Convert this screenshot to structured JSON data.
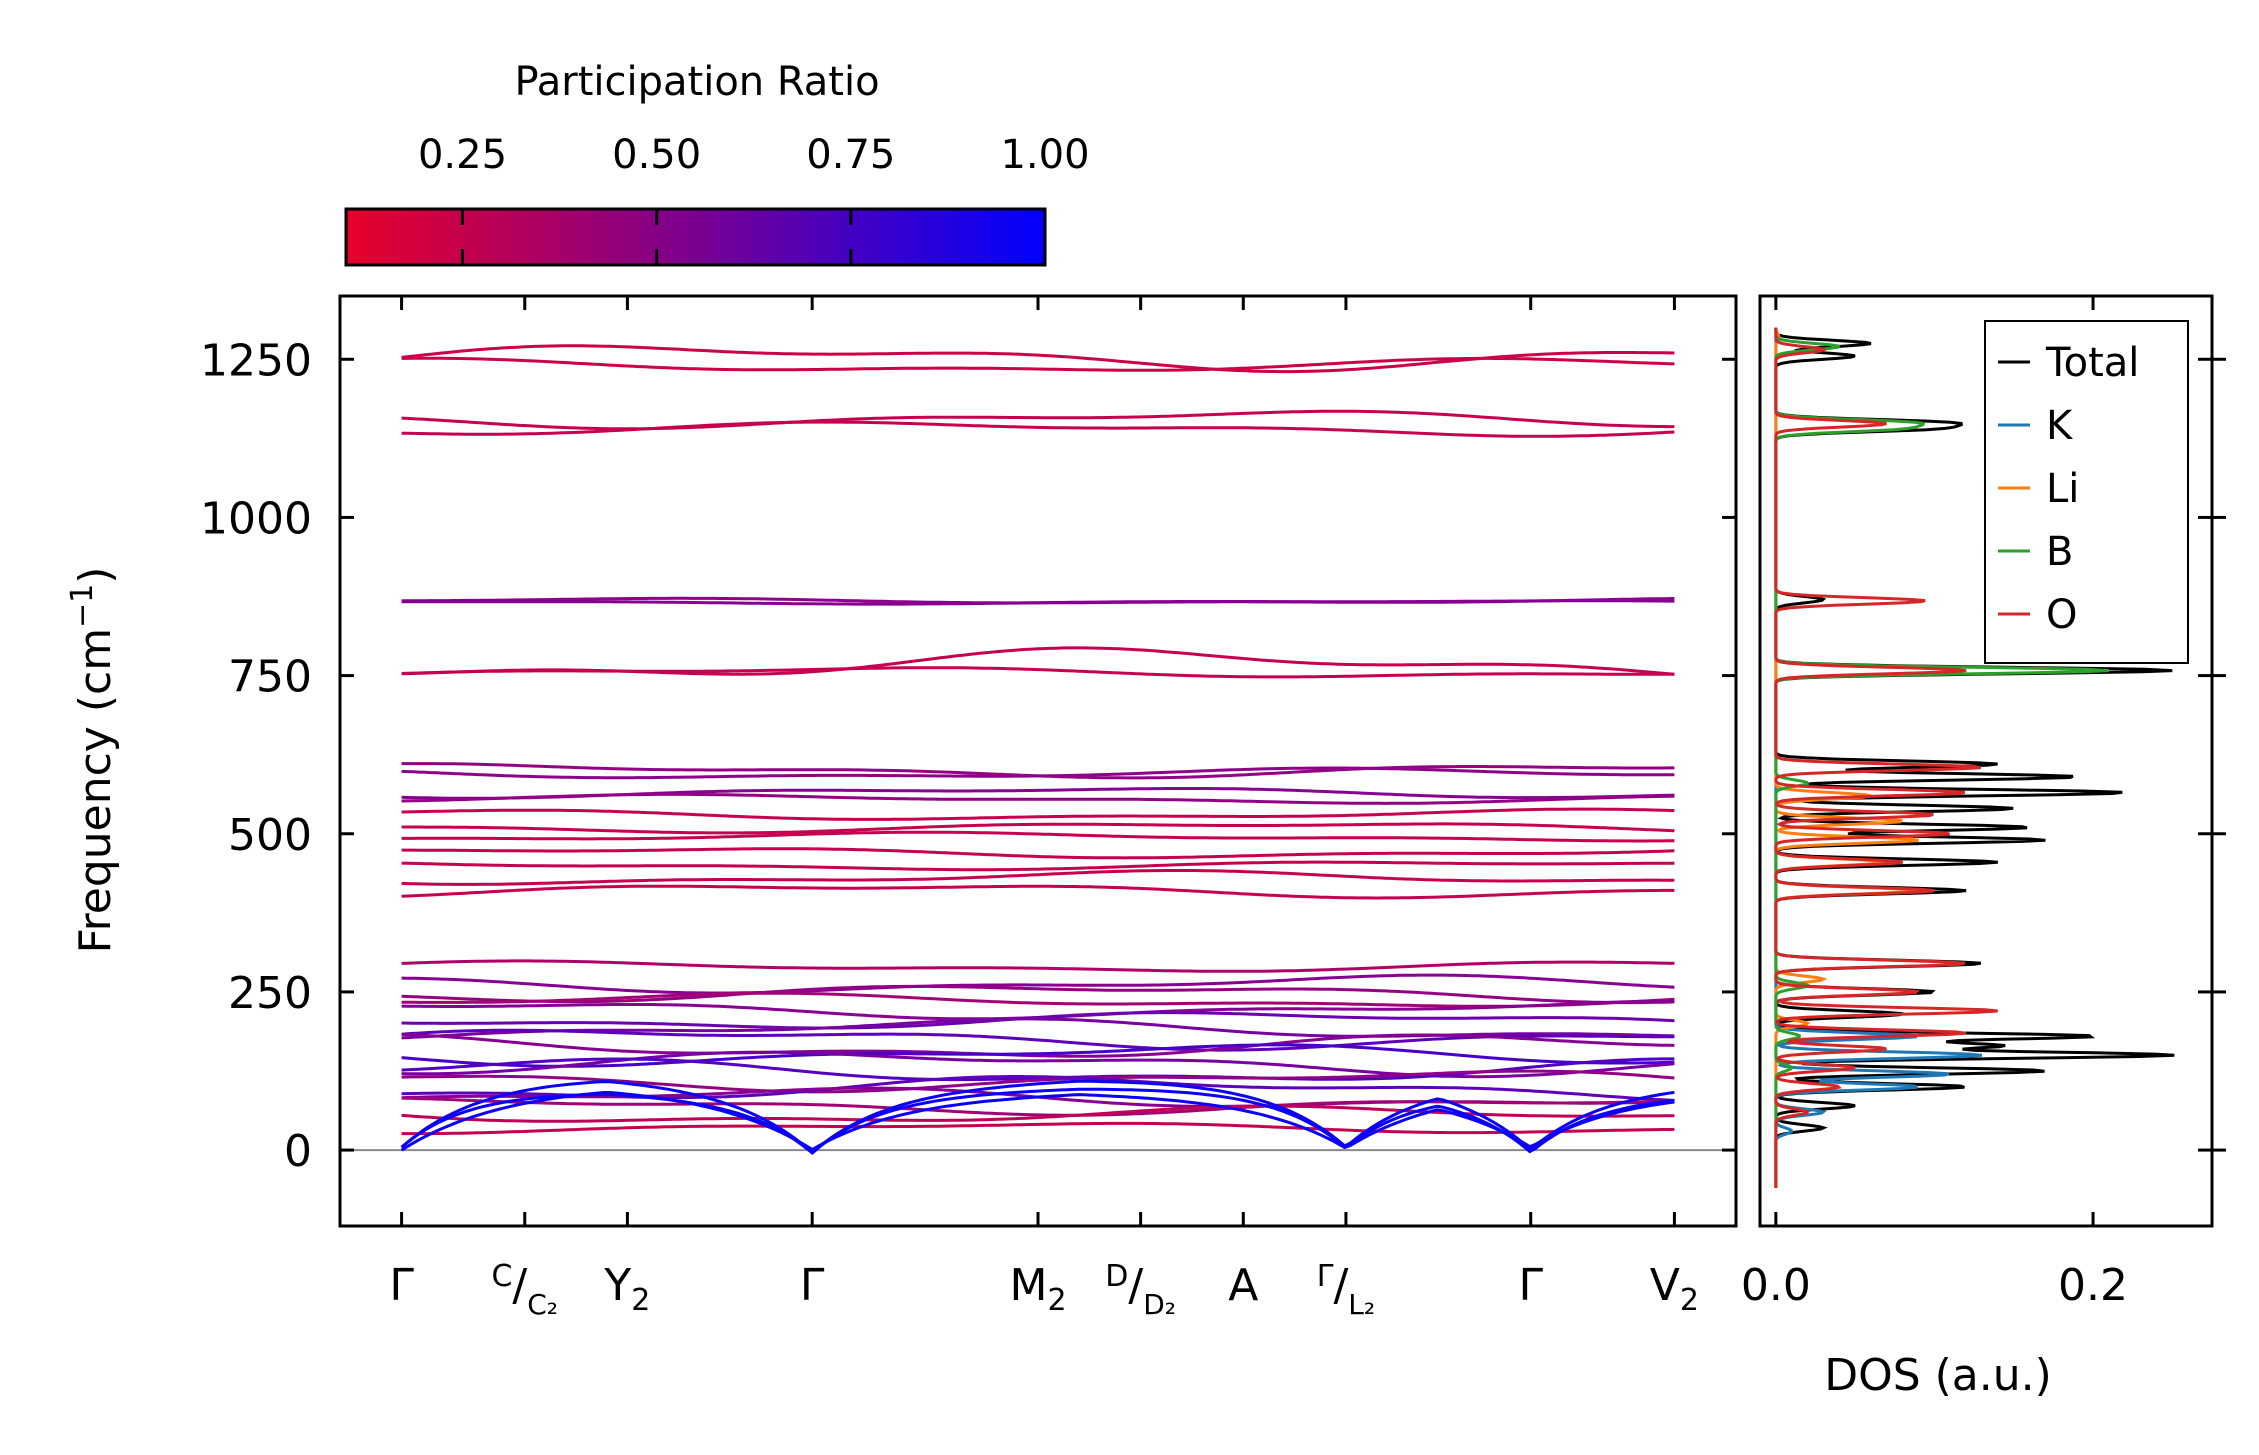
{
  "chart_data": [
    {
      "type": "line",
      "title": "",
      "ylabel": "Frequency (cm",
      "ylabel_superscript": "−1",
      "ylabel_suffix": ")",
      "ylim": [
        -120,
        1350
      ],
      "yticks": [
        0,
        250,
        500,
        750,
        1000,
        1250
      ],
      "ytick_labels": [
        "0",
        "250",
        "500",
        "750",
        "1000",
        "1250"
      ],
      "x_path": {
        "ticks": [
          {
            "id": "G1",
            "x": 0.0,
            "major": true,
            "label": "Γ"
          },
          {
            "id": "C",
            "x": 0.3,
            "major": false,
            "label_main": "C",
            "label_sub": "/C₂"
          },
          {
            "id": "Y2",
            "x": 0.55,
            "major": false,
            "label_main": "Y",
            "label_sub": "2"
          },
          {
            "id": "G2",
            "x": 1.0,
            "major": true,
            "label": "Γ"
          },
          {
            "id": "M2",
            "x": 1.55,
            "major": false,
            "label_main": "M",
            "label_sub": "2"
          },
          {
            "id": "D",
            "x": 1.8,
            "major": false,
            "label_main": "D",
            "label_sub": "/D₂"
          },
          {
            "id": "A",
            "x": 2.05,
            "major": false,
            "label": "A"
          },
          {
            "id": "G3",
            "x": 2.3,
            "major": true,
            "label_main": "Γ",
            "label_sub": "/L₂"
          },
          {
            "id": "G4",
            "x": 2.75,
            "major": true,
            "label": "Γ"
          },
          {
            "id": "V2",
            "x": 3.1,
            "major": false,
            "label_main": "V",
            "label_sub": "2"
          }
        ],
        "tick_label_display": [
          "Γ",
          "C",
          "/C₂",
          "Y",
          "2",
          "Γ",
          "M",
          "2",
          "D",
          "/D₂",
          "A",
          "Γ",
          "/L₂",
          "Γ",
          "V",
          "2"
        ]
      },
      "colorbar": {
        "label": "Participation Ratio",
        "range": [
          0.1,
          1.0
        ],
        "ticks": [
          0.25,
          0.5,
          0.75,
          1.0
        ],
        "tick_labels": [
          "0.25",
          "0.50",
          "0.75",
          "1.00"
        ],
        "color_low": "#e8002a",
        "color_mid": "#6a00b0",
        "color_high": "#0000ff"
      },
      "bands": [
        {
          "level": 1253,
          "amp": 15,
          "pr": 0.2
        },
        {
          "level": 1240,
          "amp": 8,
          "pr": 0.2
        },
        {
          "level": 1155,
          "amp": 10,
          "pr": 0.22
        },
        {
          "level": 1140,
          "amp": 8,
          "pr": 0.22
        },
        {
          "level": 868,
          "amp": 3,
          "pr": 0.42
        },
        {
          "level": 866,
          "amp": 2,
          "pr": 0.45
        },
        {
          "level": 768,
          "amp": 18,
          "pr": 0.22
        },
        {
          "level": 755,
          "amp": 6,
          "pr": 0.22
        },
        {
          "level": 600,
          "amp": 8,
          "pr": 0.4
        },
        {
          "level": 595,
          "amp": 6,
          "pr": 0.42
        },
        {
          "level": 565,
          "amp": 6,
          "pr": 0.45
        },
        {
          "level": 555,
          "amp": 5,
          "pr": 0.4
        },
        {
          "level": 530,
          "amp": 6,
          "pr": 0.22
        },
        {
          "level": 510,
          "amp": 6,
          "pr": 0.22
        },
        {
          "level": 495,
          "amp": 5,
          "pr": 0.22
        },
        {
          "level": 470,
          "amp": 6,
          "pr": 0.22
        },
        {
          "level": 450,
          "amp": 5,
          "pr": 0.22
        },
        {
          "level": 430,
          "amp": 8,
          "pr": 0.22
        },
        {
          "level": 410,
          "amp": 8,
          "pr": 0.22
        },
        {
          "level": 290,
          "amp": 6,
          "pr": 0.3
        },
        {
          "level": 262,
          "amp": 10,
          "pr": 0.45
        },
        {
          "level": 248,
          "amp": 10,
          "pr": 0.4
        },
        {
          "level": 236,
          "amp": 8,
          "pr": 0.35
        },
        {
          "level": 222,
          "amp": 10,
          "pr": 0.45
        },
        {
          "level": 205,
          "amp": 10,
          "pr": 0.55
        },
        {
          "level": 190,
          "amp": 12,
          "pr": 0.5
        },
        {
          "level": 176,
          "amp": 12,
          "pr": 0.6
        },
        {
          "level": 163,
          "amp": 14,
          "pr": 0.45
        },
        {
          "level": 150,
          "amp": 12,
          "pr": 0.7
        },
        {
          "level": 137,
          "amp": 14,
          "pr": 0.5
        },
        {
          "level": 124,
          "amp": 14,
          "pr": 0.65
        },
        {
          "level": 110,
          "amp": 12,
          "pr": 0.4
        },
        {
          "level": 97,
          "amp": 14,
          "pr": 0.6
        },
        {
          "level": 82,
          "amp": 12,
          "pr": 0.45
        },
        {
          "level": 70,
          "amp": 10,
          "pr": 0.35
        },
        {
          "level": 55,
          "amp": 10,
          "pr": 0.25
        },
        {
          "level": 35,
          "amp": 6,
          "pr": 0.22
        }
      ],
      "acoustic_peaks": [
        100,
        115,
        95
      ],
      "acoustic_pr": 0.95,
      "zero_line_color": "#888888"
    },
    {
      "type": "line",
      "xlabel": "DOS (a.u.)",
      "xlim": [
        -0.01,
        0.275
      ],
      "xticks": [
        0.0,
        0.2
      ],
      "xtick_labels": [
        "0.0",
        "0.2"
      ],
      "ylim": [
        -120,
        1350
      ],
      "legend_position": "top-right",
      "series": [
        {
          "name": "Total",
          "color": "#000000"
        },
        {
          "name": "K",
          "color": "#1f77b4"
        },
        {
          "name": "Li",
          "color": "#ff7f0e"
        },
        {
          "name": "B",
          "color": "#2ca02c"
        },
        {
          "name": "O",
          "color": "#d62728"
        }
      ],
      "peaks": {
        "Total": [
          [
            1275,
            0.06
          ],
          [
            1255,
            0.05
          ],
          [
            1150,
            0.1
          ],
          [
            1140,
            0.09
          ],
          [
            870,
            0.03
          ],
          [
            758,
            0.25
          ],
          [
            610,
            0.14
          ],
          [
            590,
            0.19
          ],
          [
            565,
            0.22
          ],
          [
            540,
            0.15
          ],
          [
            510,
            0.16
          ],
          [
            490,
            0.17
          ],
          [
            455,
            0.14
          ],
          [
            410,
            0.12
          ],
          [
            295,
            0.13
          ],
          [
            250,
            0.1
          ],
          [
            215,
            0.08
          ],
          [
            180,
            0.2
          ],
          [
            165,
            0.14
          ],
          [
            150,
            0.25
          ],
          [
            125,
            0.17
          ],
          [
            100,
            0.12
          ],
          [
            70,
            0.05
          ],
          [
            35,
            0.03
          ]
        ],
        "K": [
          [
            180,
            0.09
          ],
          [
            150,
            0.13
          ],
          [
            120,
            0.11
          ],
          [
            100,
            0.09
          ],
          [
            60,
            0.03
          ],
          [
            30,
            0.01
          ]
        ],
        "Li": [
          [
            1285,
            0.002
          ],
          [
            560,
            0.06
          ],
          [
            520,
            0.08
          ],
          [
            490,
            0.09
          ],
          [
            455,
            0.07
          ],
          [
            410,
            0.09
          ],
          [
            270,
            0.03
          ],
          [
            200,
            0.02
          ]
        ],
        "B": [
          [
            1270,
            0.04
          ],
          [
            1150,
            0.08
          ],
          [
            1140,
            0.07
          ],
          [
            758,
            0.21
          ],
          [
            580,
            0.02
          ],
          [
            260,
            0.02
          ],
          [
            180,
            0.015
          ],
          [
            130,
            0.01
          ]
        ],
        "O": [
          [
            1265,
            0.03
          ],
          [
            1148,
            0.07
          ],
          [
            868,
            0.095
          ],
          [
            758,
            0.12
          ],
          [
            605,
            0.13
          ],
          [
            565,
            0.12
          ],
          [
            530,
            0.1
          ],
          [
            500,
            0.11
          ],
          [
            455,
            0.08
          ],
          [
            410,
            0.1
          ],
          [
            295,
            0.12
          ],
          [
            250,
            0.09
          ],
          [
            220,
            0.14
          ],
          [
            185,
            0.12
          ],
          [
            160,
            0.07
          ],
          [
            130,
            0.05
          ],
          [
            100,
            0.04
          ],
          [
            60,
            0.02
          ]
        ]
      }
    }
  ]
}
